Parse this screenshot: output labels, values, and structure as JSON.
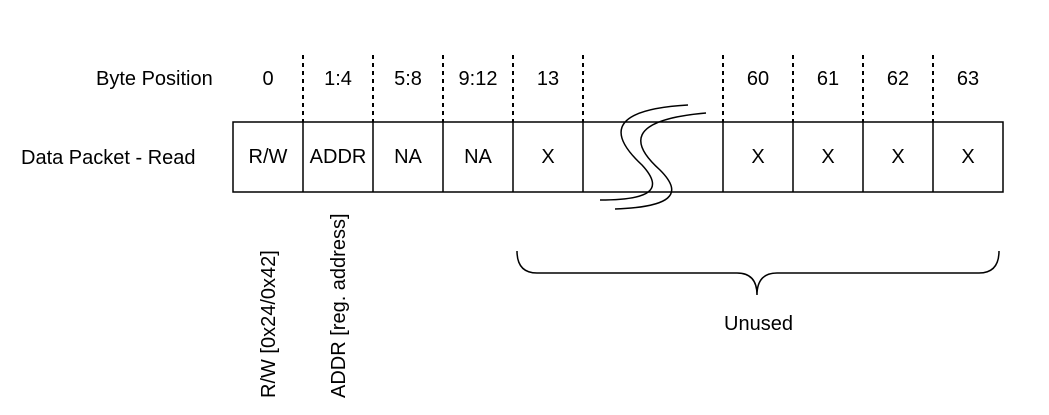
{
  "row_labels": {
    "byte_position": "Byte Position",
    "data_packet": "Data Packet - Read"
  },
  "cells": [
    {
      "id": "rw",
      "position": "0",
      "value": "R/W"
    },
    {
      "id": "addr",
      "position": "1:4",
      "value": "ADDR"
    },
    {
      "id": "na1",
      "position": "5:8",
      "value": "NA"
    },
    {
      "id": "na2",
      "position": "9:12",
      "value": "NA"
    },
    {
      "id": "b13",
      "position": "13",
      "value": "X"
    },
    {
      "id": "gap",
      "position": "",
      "value": ""
    },
    {
      "id": "b60",
      "position": "60",
      "value": "X"
    },
    {
      "id": "b61",
      "position": "61",
      "value": "X"
    },
    {
      "id": "b62",
      "position": "62",
      "value": "X"
    },
    {
      "id": "b63",
      "position": "63",
      "value": "X"
    }
  ],
  "annotations": {
    "rw_note": "R/W [0x24/0x42]",
    "addr_note": "ADDR [reg. address]",
    "unused_label": "Unused"
  }
}
